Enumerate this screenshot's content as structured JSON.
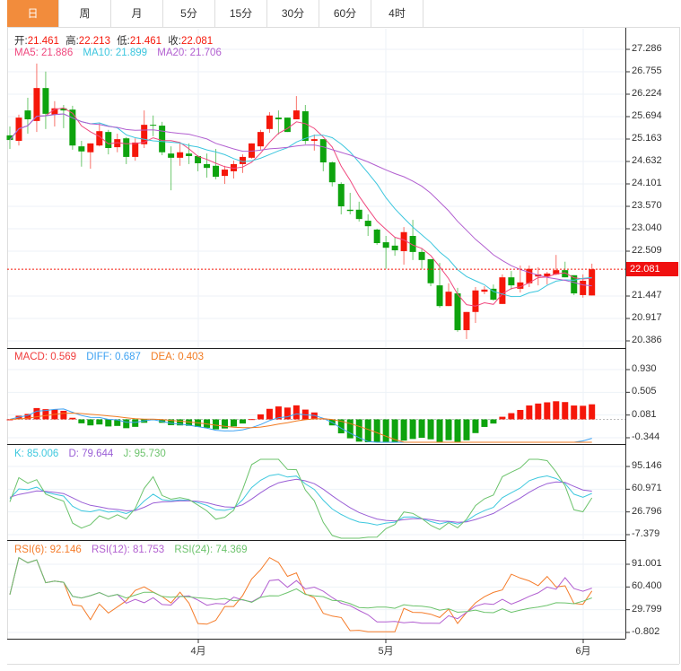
{
  "tabs": [
    "日",
    "周",
    "月",
    "5分",
    "15分",
    "30分",
    "60分",
    "4时"
  ],
  "active_tab": 0,
  "ohlc_header": {
    "open_label": "开:",
    "open": "21.461",
    "high_label": "高:",
    "high": "22.213",
    "low_label": "低:",
    "low": "21.461",
    "close_label": "收:",
    "close": "22.081"
  },
  "ma_header": {
    "ma5": "MA5: 21.886",
    "ma10": "MA10: 21.899",
    "ma20": "MA20: 21.706"
  },
  "macd_header": {
    "macd": "MACD: 0.569",
    "diff": "DIFF: 0.687",
    "dea": "DEA: 0.403"
  },
  "kdj_header": {
    "k": "K: 85.006",
    "d": "D: 79.644",
    "j": "J: 95.730"
  },
  "rsi_header": {
    "rsi6": "RSI(6): 92.146",
    "rsi12": "RSI(12): 81.753",
    "rsi24": "RSI(24): 74.369"
  },
  "current_price": "22.081",
  "price_axis": [
    "27.286",
    "26.755",
    "26.224",
    "25.694",
    "25.163",
    "24.632",
    "24.101",
    "23.570",
    "23.040",
    "22.509",
    "21.447",
    "20.917",
    "20.386"
  ],
  "macd_axis": [
    "0.930",
    "0.505",
    "0.081",
    "-0.344"
  ],
  "kdj_axis": [
    "95.146",
    "60.971",
    "26.796",
    "-7.379"
  ],
  "rsi_axis": [
    "91.001",
    "60.400",
    "29.799",
    "-0.802"
  ],
  "x_axis": [
    "4月",
    "5月",
    "6月"
  ],
  "colors": {
    "up": "#f5170a",
    "down": "#0ea30e",
    "ma5": "#f0487e",
    "ma10": "#3cc6de",
    "ma20": "#b25fd0",
    "diff": "#3ea2f2",
    "dea": "#f27a20",
    "k": "#3ec8de",
    "d": "#9a5fd6",
    "j": "#6cc36c",
    "rsi6": "#f57c2a",
    "rsi12": "#b25fd0",
    "rsi24": "#6cc36c",
    "accent": "#f28c3c"
  },
  "chart_data": {
    "type": "candlestick",
    "price_range": [
      20.386,
      27.286
    ],
    "candles_ohlc": [
      [
        25.25,
        25.46,
        24.93,
        25.14
      ],
      [
        25.12,
        25.74,
        25.01,
        25.67
      ],
      [
        25.84,
        26.14,
        25.29,
        25.63
      ],
      [
        25.59,
        26.95,
        25.33,
        26.37
      ],
      [
        26.37,
        26.76,
        25.4,
        25.76
      ],
      [
        25.74,
        26.06,
        25.46,
        25.89
      ],
      [
        25.89,
        25.97,
        25.42,
        25.84
      ],
      [
        25.86,
        25.95,
        24.91,
        25.01
      ],
      [
        24.99,
        25.12,
        24.51,
        24.87
      ],
      [
        24.85,
        25.06,
        24.46,
        25.06
      ],
      [
        25.01,
        25.55,
        24.99,
        25.35
      ],
      [
        25.33,
        25.38,
        24.8,
        24.95
      ],
      [
        24.97,
        25.29,
        24.85,
        25.16
      ],
      [
        25.18,
        25.21,
        24.57,
        24.74
      ],
      [
        24.74,
        25.18,
        24.65,
        25.08
      ],
      [
        25.04,
        25.84,
        24.95,
        25.5
      ],
      [
        25.5,
        25.72,
        25.23,
        25.48
      ],
      [
        25.48,
        25.57,
        24.78,
        24.85
      ],
      [
        24.82,
        24.99,
        23.95,
        24.72
      ],
      [
        24.72,
        25.06,
        24.53,
        24.85
      ],
      [
        24.82,
        25.06,
        24.57,
        24.76
      ],
      [
        24.76,
        24.78,
        24.4,
        24.59
      ],
      [
        24.57,
        24.82,
        24.25,
        24.48
      ],
      [
        24.53,
        24.93,
        24.21,
        24.27
      ],
      [
        24.29,
        24.53,
        24.1,
        24.44
      ],
      [
        24.4,
        24.65,
        24.23,
        24.57
      ],
      [
        24.57,
        24.8,
        24.36,
        24.74
      ],
      [
        24.72,
        25.06,
        24.7,
        25.06
      ],
      [
        24.99,
        25.38,
        24.91,
        25.33
      ],
      [
        25.4,
        25.8,
        25.31,
        25.72
      ],
      [
        25.67,
        25.84,
        25.27,
        25.63
      ],
      [
        25.67,
        25.67,
        25.33,
        25.33
      ],
      [
        25.63,
        26.18,
        25.63,
        25.84
      ],
      [
        25.82,
        25.97,
        25.04,
        25.12
      ],
      [
        25.12,
        25.27,
        24.89,
        25.16
      ],
      [
        25.16,
        25.16,
        24.4,
        24.61
      ],
      [
        24.61,
        24.63,
        24.04,
        24.14
      ],
      [
        24.1,
        24.14,
        23.38,
        23.57
      ],
      [
        23.49,
        23.89,
        23.38,
        23.46
      ],
      [
        23.49,
        23.68,
        23.21,
        23.27
      ],
      [
        23.23,
        23.38,
        22.87,
        23.1
      ],
      [
        23.02,
        23.04,
        22.66,
        22.7
      ],
      [
        22.72,
        22.87,
        22.09,
        22.59
      ],
      [
        22.64,
        22.83,
        22.4,
        22.53
      ],
      [
        22.51,
        23.08,
        22.19,
        22.96
      ],
      [
        22.87,
        23.25,
        22.3,
        22.49
      ],
      [
        22.49,
        22.57,
        22.09,
        22.3
      ],
      [
        22.32,
        22.32,
        21.68,
        21.75
      ],
      [
        21.7,
        22.23,
        21.17,
        21.21
      ],
      [
        21.21,
        21.75,
        21.21,
        21.55
      ],
      [
        21.51,
        21.64,
        20.6,
        20.64
      ],
      [
        20.64,
        21.07,
        20.43,
        21.07
      ],
      [
        21.07,
        21.66,
        20.81,
        21.58
      ],
      [
        21.55,
        21.68,
        21.49,
        21.6
      ],
      [
        21.62,
        21.72,
        21.34,
        21.36
      ],
      [
        21.26,
        21.96,
        21.26,
        21.89
      ],
      [
        21.89,
        22.04,
        21.6,
        21.7
      ],
      [
        21.62,
        22.17,
        21.53,
        21.77
      ],
      [
        21.75,
        22.17,
        21.66,
        22.09
      ],
      [
        21.91,
        22.13,
        21.7,
        21.96
      ],
      [
        21.91,
        22.02,
        21.72,
        21.98
      ],
      [
        21.96,
        22.42,
        21.94,
        22.06
      ],
      [
        22.06,
        22.26,
        21.89,
        21.89
      ],
      [
        21.94,
        21.94,
        21.47,
        21.51
      ],
      [
        21.47,
        21.96,
        21.41,
        21.81
      ],
      [
        21.461,
        22.213,
        21.461,
        22.081
      ]
    ],
    "macd_range": [
      -0.344,
      0.93
    ],
    "kdj_range": [
      -7.379,
      95.146
    ],
    "rsi_range": [
      -0.802,
      91.001
    ],
    "month_labels_at_index": [
      21,
      42,
      64
    ]
  }
}
